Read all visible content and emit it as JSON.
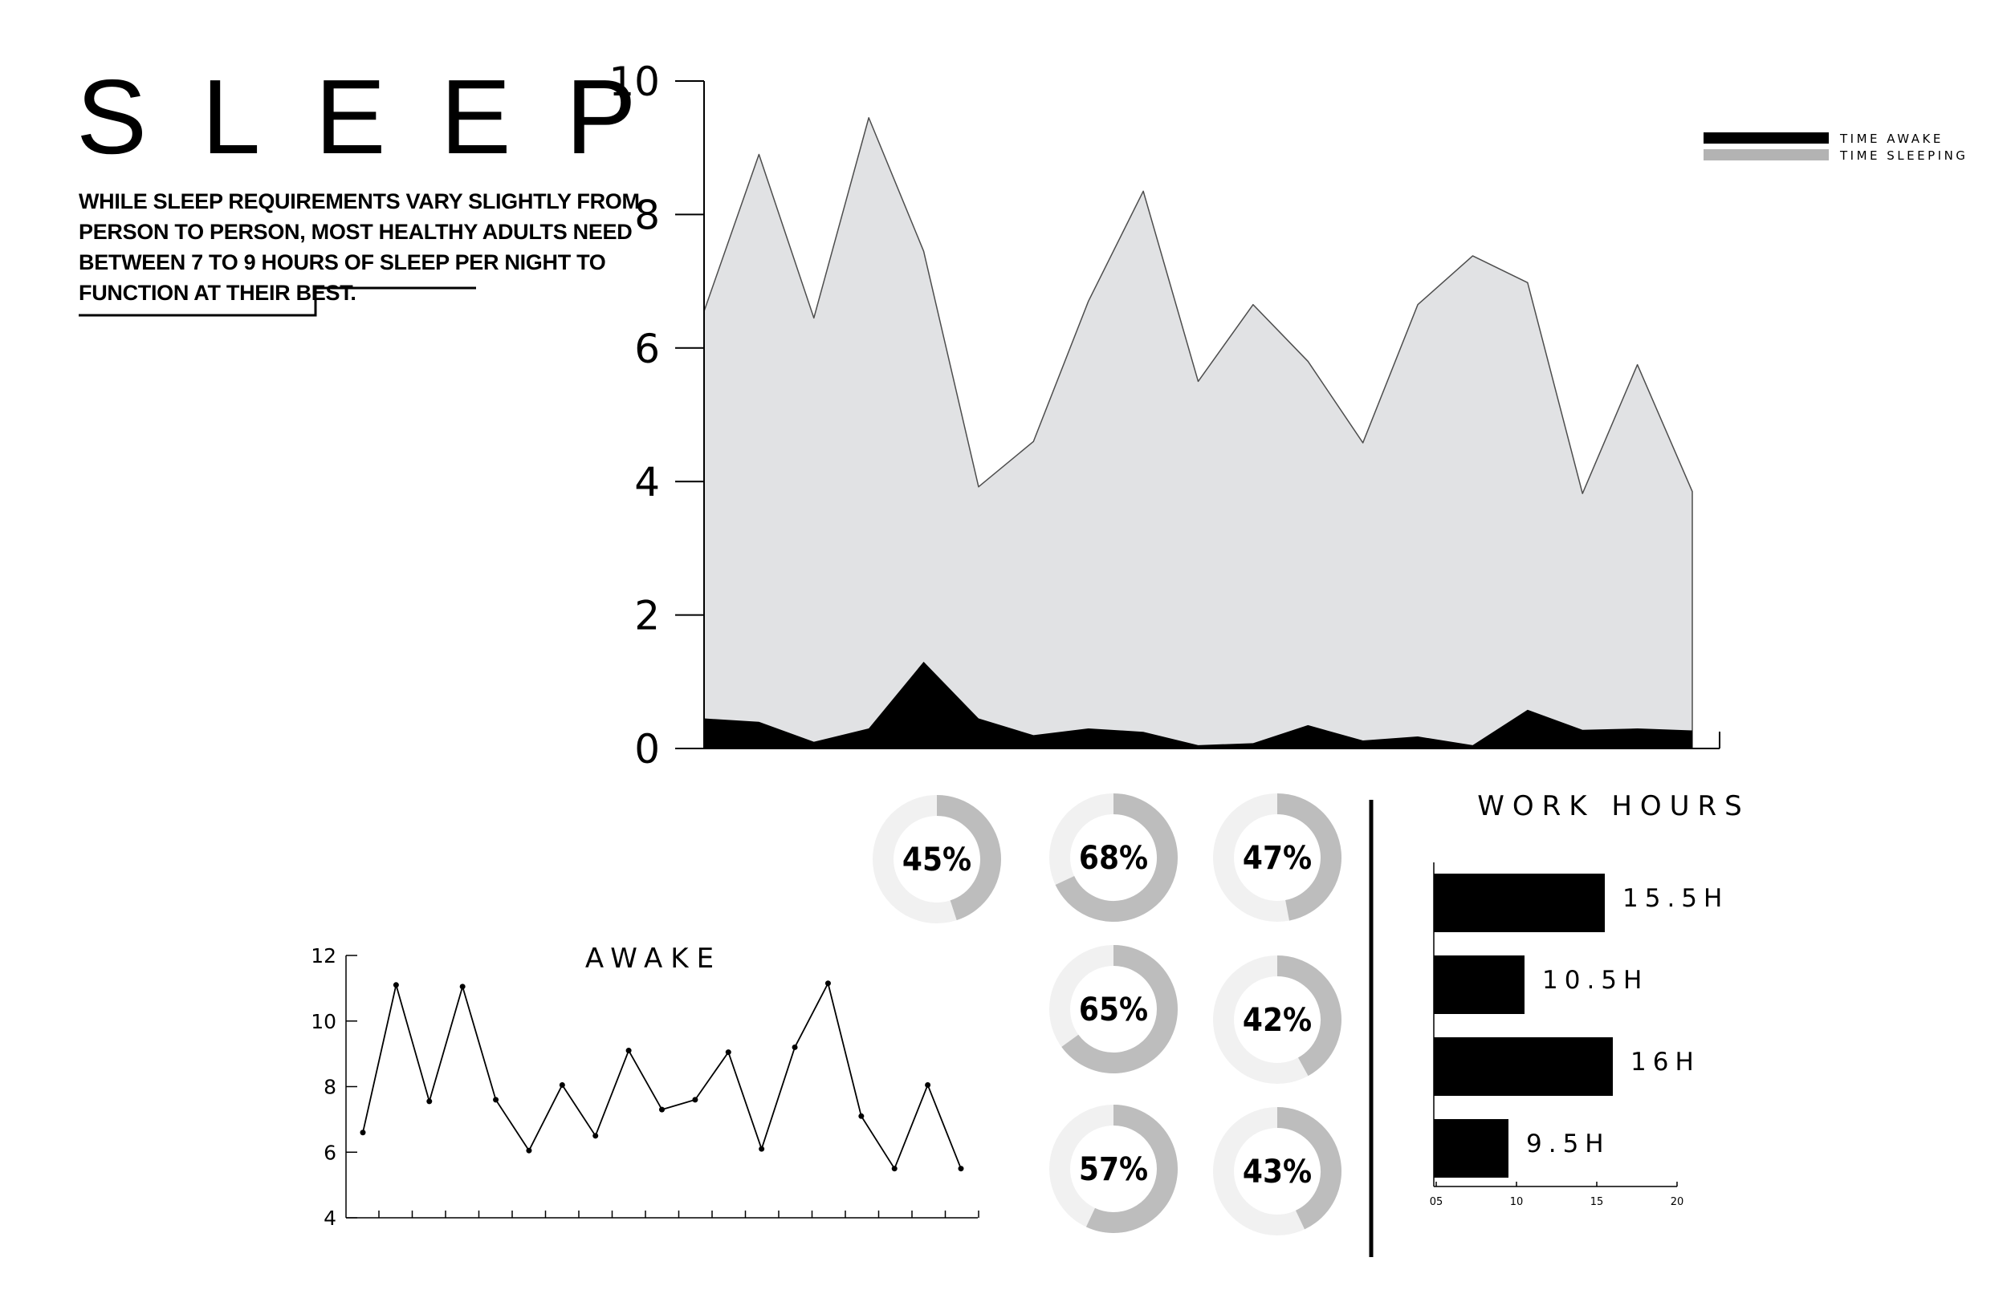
{
  "header": {
    "title": "SLEEP",
    "description_lines": [
      "WHILE SLEEP REQUIREMENTS VARY SLIGHTLY FROM",
      "PERSON TO PERSON, MOST HEALTHY ADULTS NEED",
      "BETWEEN 7 TO 9 HOURS OF SLEEP PER NIGHT TO",
      "FUNCTION AT THEIR BEST."
    ]
  },
  "colors": {
    "time_sleeping": "#e1e2e4",
    "time_awake": "#000000",
    "legend_sleeping": "#b3b3b3",
    "donut_track": "#f1f1f1",
    "donut_fill": "#bdbdbd",
    "bar": "#000000"
  },
  "chart_data": [
    {
      "type": "area",
      "title": "",
      "xlabel": "",
      "ylabel": "",
      "ylim": [
        0,
        10
      ],
      "yticks": [
        "0",
        "2",
        "4",
        "6",
        "8",
        "10"
      ],
      "legend": {
        "position": "top-right",
        "entries": [
          "TIME AWAKE",
          "TIME SLEEPING"
        ]
      },
      "series": [
        {
          "name": "TIME SLEEPING",
          "values": [
            6.55,
            8.9,
            6.45,
            9.45,
            7.45,
            3.92,
            4.6,
            6.7,
            8.35,
            5.5,
            6.65,
            5.8,
            4.58,
            6.65,
            7.38,
            6.98,
            3.82,
            5.75,
            3.85
          ]
        },
        {
          "name": "TIME AWAKE",
          "values": [
            0.45,
            0.4,
            0.1,
            0.3,
            1.3,
            0.45,
            0.2,
            0.3,
            0.25,
            0.05,
            0.08,
            0.35,
            0.12,
            0.18,
            0.05,
            0.58,
            0.28,
            0.3,
            0.27
          ]
        }
      ]
    },
    {
      "type": "line",
      "title": "AWAKE",
      "xlabel": "",
      "ylabel": "",
      "ylim": [
        4,
        12
      ],
      "yticks": [
        "4",
        "6",
        "8",
        "10",
        "12"
      ],
      "series": [
        {
          "values": [
            6.6,
            11.1,
            7.55,
            11.05,
            7.6,
            6.05,
            8.05,
            6.5,
            9.1,
            7.3,
            7.6,
            9.05,
            6.1,
            9.2,
            11.15,
            7.1,
            5.5,
            8.05,
            5.5
          ]
        }
      ]
    },
    {
      "type": "pie",
      "title": "",
      "variant": "donut",
      "values": [
        45,
        68,
        47,
        65,
        42,
        57,
        43
      ],
      "labels": [
        "45%",
        "68%",
        "47%",
        "65%",
        "42%",
        "57%",
        "43%"
      ]
    },
    {
      "type": "bar",
      "orientation": "horizontal",
      "title": "WORK HOURS",
      "xlim": [
        5,
        20
      ],
      "xticks": [
        "05",
        "10",
        "15",
        "20"
      ],
      "values": [
        15.5,
        10.5,
        16,
        9.5
      ],
      "labels": [
        "15.5H",
        "10.5H",
        "16H",
        "9.5H"
      ]
    }
  ]
}
